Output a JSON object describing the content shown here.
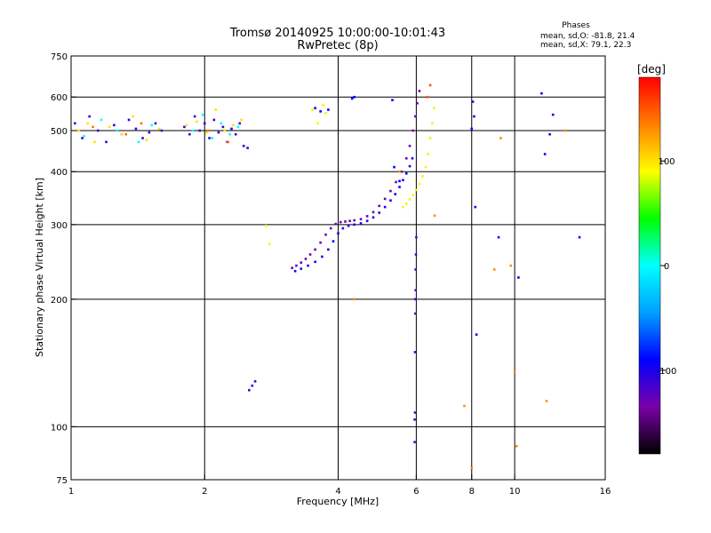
{
  "chart_data": {
    "type": "scatter",
    "title": "Tromsø 20140925 10:00:00-10:01:43",
    "subtitle": "RwPretec (8p)",
    "stats": {
      "heading": "Phases",
      "line1": "mean, sd,O: -81.8, 21.4",
      "line2": "mean, sd,X:  79.1, 22.3"
    },
    "xlabel": "Frequency [MHz]",
    "ylabel": "Stationary phase Virtual Height [km]",
    "x_scale": "log",
    "y_scale": "log",
    "xlim": [
      1,
      16
    ],
    "ylim": [
      75,
      750
    ],
    "x_ticks": [
      1,
      2,
      4,
      6,
      8,
      10,
      16
    ],
    "x_tick_labels": [
      "1",
      "2",
      "4",
      "6",
      "8",
      "10",
      "16"
    ],
    "y_ticks": [
      75,
      100,
      200,
      300,
      400,
      500,
      600,
      750
    ],
    "y_tick_labels": [
      "75",
      "100",
      "200",
      "300",
      "400",
      "500",
      "600",
      "750"
    ],
    "grid_x": [
      2,
      4,
      6,
      8,
      10
    ],
    "grid_y": [
      100,
      200,
      300,
      400,
      500,
      600
    ],
    "colorbar": {
      "label": "[deg]",
      "range": [
        -180,
        180
      ],
      "ticks": [
        100,
        0,
        -100
      ],
      "tick_labels": [
        "100",
        "0",
        "-100"
      ],
      "colors": [
        "#000000",
        "#7a00a8",
        "#0000ff",
        "#00a0ff",
        "#00ffff",
        "#00ff00",
        "#ffff00",
        "#ff8000",
        "#ff0000"
      ]
    },
    "series": [
      {
        "phase": -130,
        "x": [
          3.15,
          3.22,
          3.3,
          3.38,
          3.46,
          3.55,
          3.65,
          3.75,
          3.85,
          3.95,
          4.05,
          4.15,
          4.25,
          4.35,
          4.5,
          4.65,
          4.8,
          4.95,
          5.1,
          5.25,
          5.4,
          5.55,
          5.7,
          5.8,
          5.9,
          5.97,
          6.03,
          6.1
        ],
        "y": [
          237,
          240,
          244,
          249,
          255,
          262,
          272,
          284,
          294,
          301,
          304,
          305,
          306,
          307,
          309,
          314,
          321,
          332,
          345,
          360,
          378,
          400,
          430,
          460,
          500,
          540,
          580,
          620
        ]
      },
      {
        "phase": -100,
        "x": [
          3.2,
          3.3,
          3.42,
          3.55,
          3.68,
          3.8,
          3.9,
          4.0,
          4.1,
          4.22,
          4.35,
          4.5,
          4.65,
          4.8,
          4.95,
          5.1,
          5.25,
          5.38,
          5.5,
          5.6,
          5.7,
          5.8,
          5.88
        ],
        "y": [
          233,
          236,
          240,
          245,
          252,
          262,
          274,
          286,
          294,
          298,
          300,
          302,
          306,
          312,
          320,
          330,
          342,
          354,
          368,
          382,
          396,
          412,
          430
        ]
      },
      {
        "phase": 95,
        "x": [
          5.6,
          5.7,
          5.8,
          5.9,
          6.0,
          6.1,
          6.2,
          6.3,
          6.38,
          6.45,
          6.52,
          6.58
        ],
        "y": [
          330,
          336,
          344,
          352,
          362,
          374,
          390,
          410,
          440,
          480,
          520,
          565
        ]
      },
      {
        "phase": 150,
        "x": [
          6.35,
          6.45
        ],
        "y": [
          600,
          640
        ]
      },
      {
        "phase": -120,
        "x": [
          5.95,
          5.95,
          5.96,
          5.96,
          5.97,
          5.97,
          5.98,
          5.98,
          5.99,
          6.0
        ],
        "y": [
          92,
          104,
          108,
          150,
          185,
          200,
          210,
          235,
          255,
          280
        ]
      },
      {
        "phase": -110,
        "x": [
          1.02,
          1.06,
          1.1,
          1.15,
          1.2,
          1.25,
          1.3,
          1.35,
          1.4,
          1.45,
          1.5,
          1.55,
          1.6,
          1.8,
          1.85,
          1.9,
          1.95,
          2.0,
          2.05,
          2.1,
          2.15,
          2.2,
          2.25,
          2.3,
          2.35,
          2.4,
          2.45,
          2.5
        ],
        "y": [
          520,
          480,
          540,
          500,
          470,
          515,
          490,
          530,
          505,
          480,
          495,
          520,
          500,
          510,
          490,
          540,
          500,
          520,
          480,
          530,
          495,
          510,
          470,
          505,
          490,
          520,
          460,
          455
        ]
      },
      {
        "phase": 100,
        "x": [
          1.04,
          1.09,
          1.13,
          1.22,
          1.3,
          1.38,
          1.48,
          1.58,
          1.82,
          1.92,
          2.02,
          2.12,
          2.22,
          2.32,
          2.42
        ],
        "y": [
          500,
          520,
          470,
          510,
          490,
          540,
          475,
          505,
          515,
          525,
          495,
          560,
          500,
          515,
          530
        ]
      },
      {
        "phase": 0,
        "x": [
          1.07,
          1.17,
          1.27,
          1.42,
          1.52,
          1.88,
          1.98,
          2.08,
          2.18,
          2.28,
          2.38
        ],
        "y": [
          485,
          530,
          500,
          470,
          515,
          500,
          545,
          480,
          520,
          490,
          510
        ]
      },
      {
        "phase": 140,
        "x": [
          1.12,
          1.33,
          1.44,
          2.04,
          2.26
        ],
        "y": [
          510,
          490,
          520,
          500,
          470
        ]
      },
      {
        "phase": -115,
        "x": [
          2.52,
          2.56,
          2.6
        ],
        "y": [
          122,
          125,
          128
        ]
      },
      {
        "phase": 95,
        "x": [
          3.5,
          3.6,
          3.7,
          3.75,
          2.75,
          2.8
        ],
        "y": [
          560,
          520,
          575,
          550,
          298,
          270
        ]
      },
      {
        "phase": -90,
        "x": [
          3.55,
          3.65,
          3.8,
          4.3,
          4.35,
          5.3,
          5.35,
          5.5
        ],
        "y": [
          565,
          555,
          560,
          595,
          600,
          590,
          410,
          380
        ]
      },
      {
        "phase": 130,
        "x": [
          4.35,
          5.5,
          6.6,
          7.7,
          8.0,
          9.0,
          9.3,
          9.8,
          10.0,
          10.1,
          11.8,
          13.0
        ],
        "y": [
          200,
          400,
          315,
          112,
          80,
          235,
          480,
          240,
          135,
          90,
          115,
          500
        ]
      },
      {
        "phase": -100,
        "x": [
          8.0,
          8.05,
          8.1,
          8.15,
          9.2,
          10.2,
          11.5,
          11.7,
          12.0,
          14.0,
          8.2,
          12.2
        ],
        "y": [
          505,
          585,
          540,
          330,
          280,
          225,
          612,
          440,
          490,
          280,
          165,
          545
        ]
      }
    ]
  }
}
